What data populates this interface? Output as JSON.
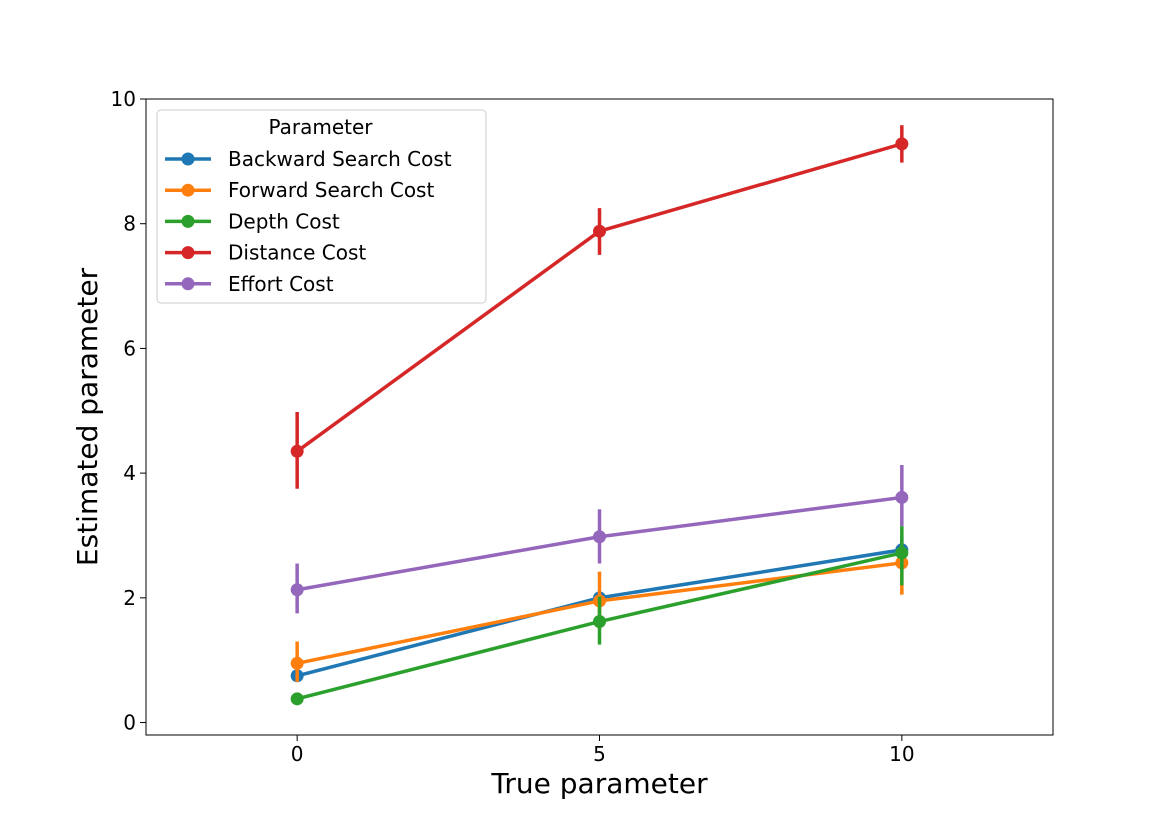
{
  "chart_data": {
    "type": "line",
    "title": "",
    "xlabel": "True parameter",
    "ylabel": "Estimated parameter",
    "x": [
      0,
      5,
      10
    ],
    "xlim": [
      -2.5,
      12.5
    ],
    "ylim": [
      -0.2,
      10
    ],
    "xticks": [
      0,
      5,
      10
    ],
    "yticks": [
      0,
      2,
      4,
      6,
      8,
      10
    ],
    "xtick_labels": [
      "0",
      "5",
      "10"
    ],
    "ytick_labels": [
      "0",
      "2",
      "4",
      "6",
      "8",
      "10"
    ],
    "grid": false,
    "legend": {
      "title": "Parameter",
      "placement": "top-left"
    },
    "series": [
      {
        "name": "Backward Search Cost",
        "color": "#1f77b4",
        "values": [
          0.75,
          2.0,
          2.77
        ],
        "err_low": [
          0.75,
          1.95,
          2.55
        ],
        "err_high": [
          0.75,
          2.05,
          2.99
        ]
      },
      {
        "name": "Forward Search Cost",
        "color": "#ff7f0e",
        "values": [
          0.95,
          1.95,
          2.56
        ],
        "err_low": [
          0.65,
          1.5,
          2.05
        ],
        "err_high": [
          1.3,
          2.42,
          2.75
        ]
      },
      {
        "name": "Depth Cost",
        "color": "#2ca02c",
        "values": [
          0.38,
          1.62,
          2.72
        ],
        "err_low": [
          0.28,
          1.25,
          2.2
        ],
        "err_high": [
          0.48,
          2.02,
          3.15
        ]
      },
      {
        "name": "Distance Cost",
        "color": "#d62728",
        "values": [
          4.35,
          7.88,
          9.28
        ],
        "err_low": [
          3.75,
          7.5,
          8.98
        ],
        "err_high": [
          4.98,
          8.25,
          9.58
        ]
      },
      {
        "name": "Effort Cost",
        "color": "#9467bd",
        "values": [
          2.13,
          2.98,
          3.61
        ],
        "err_low": [
          1.75,
          2.55,
          3.15
        ],
        "err_high": [
          2.55,
          3.42,
          4.13
        ]
      }
    ]
  }
}
